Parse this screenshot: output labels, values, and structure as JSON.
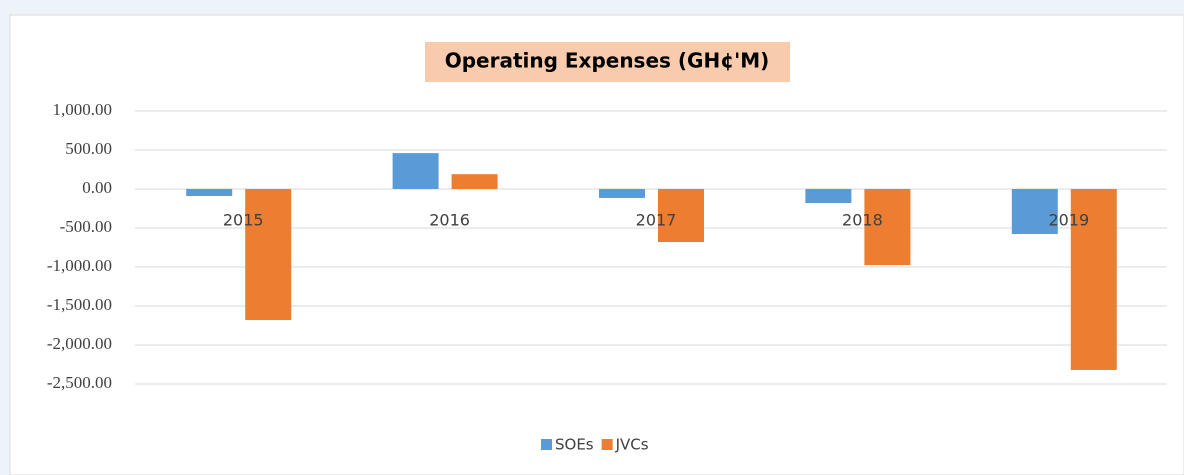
{
  "chart_data": {
    "type": "bar",
    "title": "Operating Expenses (GH¢'M)",
    "categories": [
      "2015",
      "2016",
      "2017",
      "2018",
      "2019"
    ],
    "series": [
      {
        "name": "SOEs",
        "color": "#5b9bd5",
        "values": [
          -90,
          460,
          -115,
          -180,
          -577
        ]
      },
      {
        "name": "JVCs",
        "color": "#ed7d31",
        "values": [
          -1680,
          190,
          -680,
          -975,
          -2320
        ]
      }
    ],
    "ylim": [
      -2500,
      1000
    ],
    "yticks": [
      {
        "value": -2500,
        "label": "-2,500.00"
      },
      {
        "value": -2000,
        "label": "-2,000.00"
      },
      {
        "value": -1500,
        "label": "-1,500.00"
      },
      {
        "value": -1000,
        "label": "-1,000.00"
      },
      {
        "value": -500,
        "label": "-500.00"
      },
      {
        "value": 0,
        "label": "0.00"
      },
      {
        "value": 500,
        "label": "500.00"
      },
      {
        "value": 1000,
        "label": "1,000.00"
      }
    ],
    "grid": true,
    "legend": "bottom"
  }
}
